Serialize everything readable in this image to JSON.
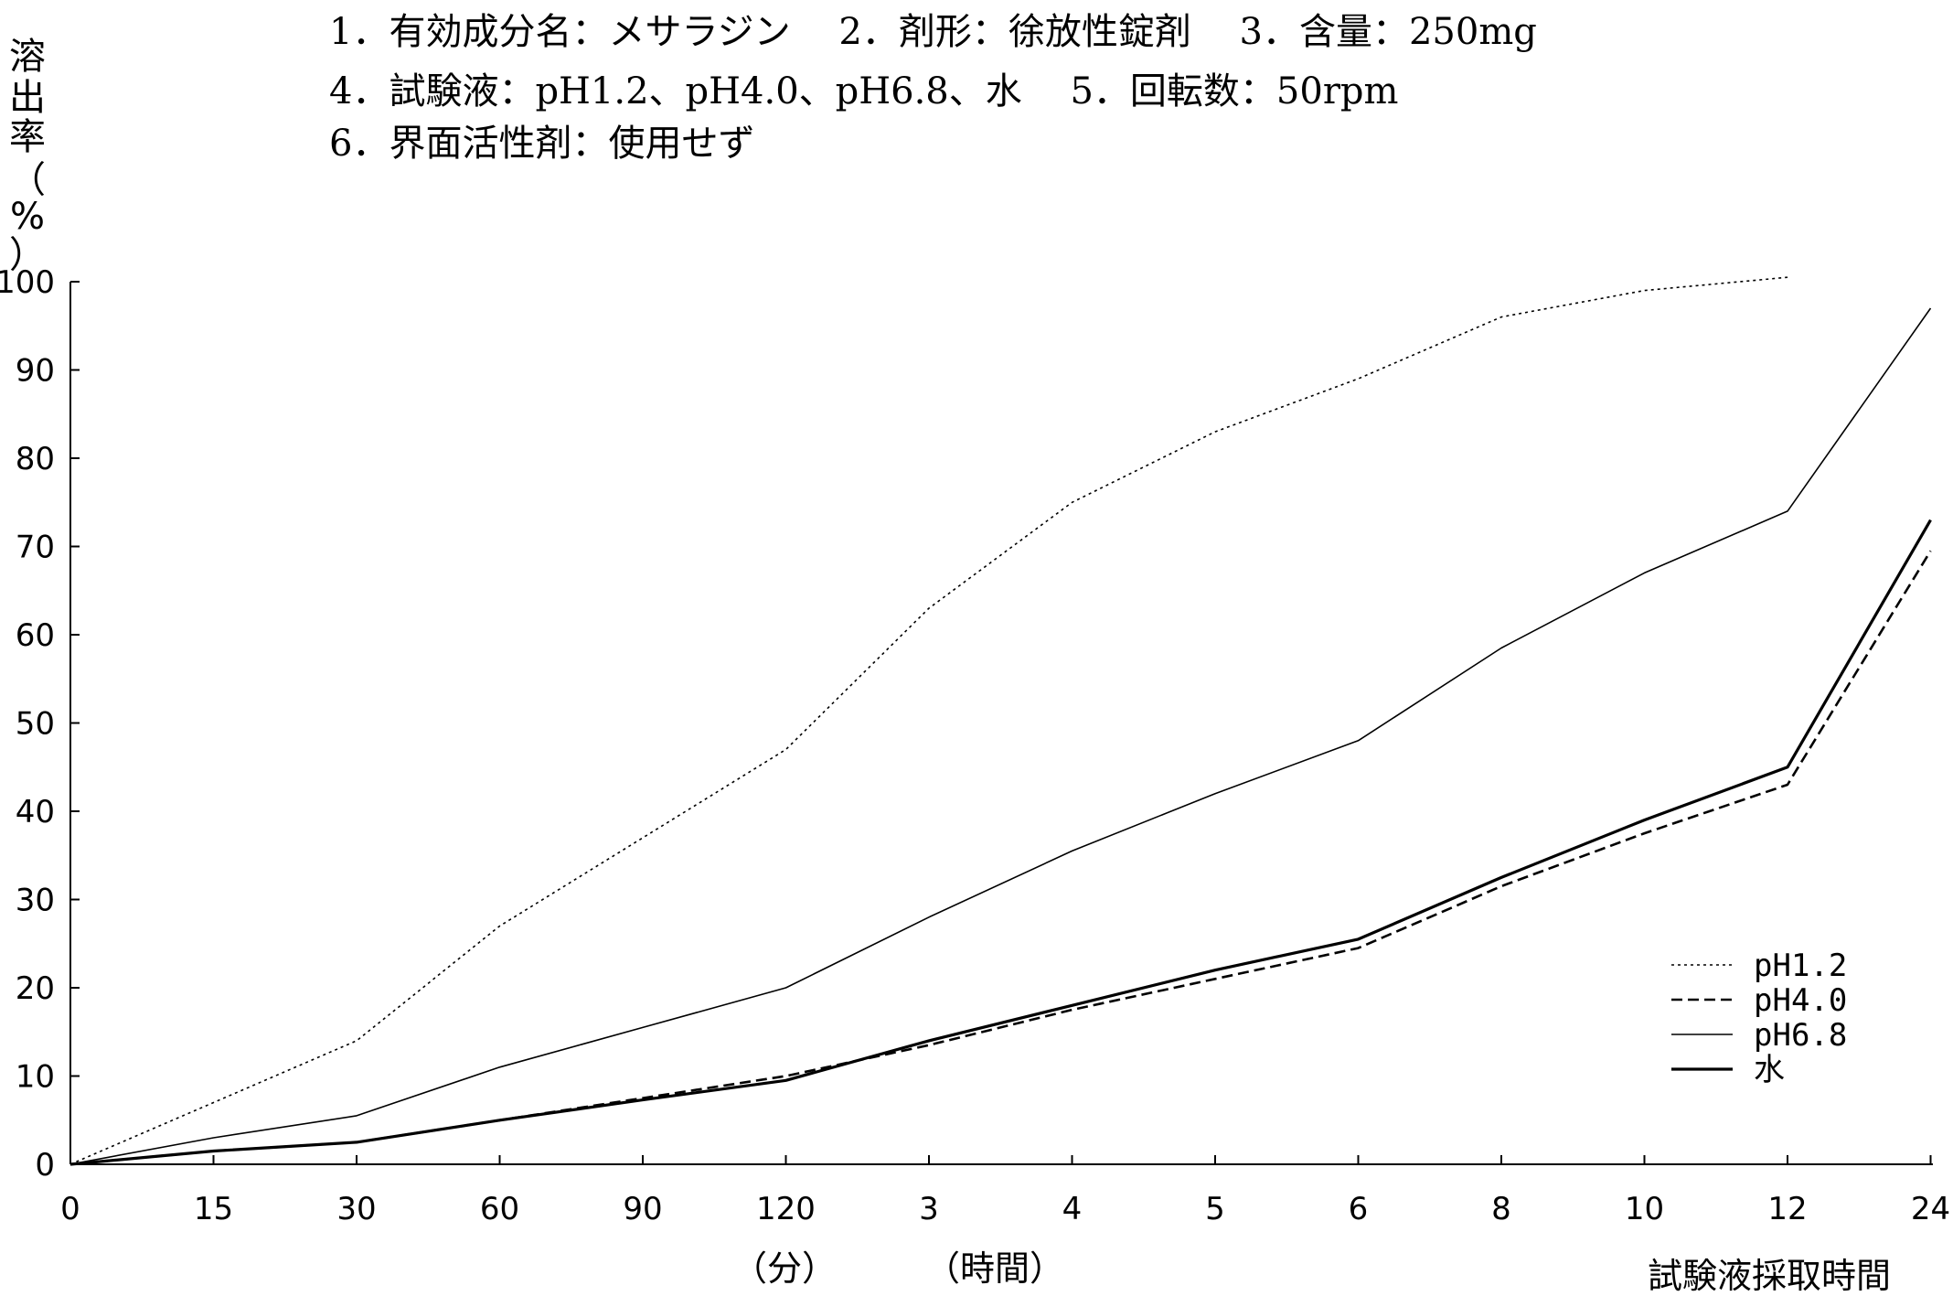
{
  "header": {
    "line1": "1．有効成分名：メサラジン　 2．剤形：徐放性錠剤　 3．含量：250mg",
    "line2": "4．試験液：pH1.2、pH4.0、pH6.8、水　 5．回転数：50rpm",
    "line3": "6．界面活性剤：使用せず"
  },
  "chart_data": {
    "type": "line",
    "title": "",
    "ylabel": "溶出率（%）",
    "ylim": [
      0,
      100
    ],
    "yticks": [
      "0",
      "10",
      "20",
      "30",
      "40",
      "50",
      "60",
      "70",
      "80",
      "90",
      "100"
    ],
    "categories": [
      "0",
      "15",
      "30",
      "60",
      "90",
      "120",
      "3",
      "4",
      "5",
      "6",
      "8",
      "10",
      "12",
      "24"
    ],
    "x_unit_min": "（分）",
    "x_unit_hour": "（時間）",
    "xlabel": "試験液採取時間",
    "grid": false,
    "legend_position": "bottom-right",
    "series": [
      {
        "name": "pH1.2",
        "style": "dotted",
        "values": [
          0,
          7,
          14,
          27,
          37,
          47,
          63,
          75,
          83,
          89,
          96,
          99,
          100.5,
          null
        ]
      },
      {
        "name": "pH4.0",
        "style": "dashed",
        "values": [
          0,
          1.5,
          2.5,
          5,
          7.5,
          10,
          13.5,
          17.5,
          21,
          24.5,
          31.5,
          37.5,
          43,
          69.5
        ]
      },
      {
        "name": "pH6.8",
        "style": "solid-thin",
        "values": [
          0,
          3,
          5.5,
          11,
          15.5,
          20,
          28,
          35.5,
          42,
          48,
          58.5,
          67,
          74,
          97
        ]
      },
      {
        "name": "水",
        "style": "solid-thick",
        "values": [
          0,
          1.5,
          2.5,
          5,
          7.3,
          9.5,
          14,
          18,
          22,
          25.5,
          32.5,
          39,
          45,
          73
        ]
      }
    ]
  }
}
